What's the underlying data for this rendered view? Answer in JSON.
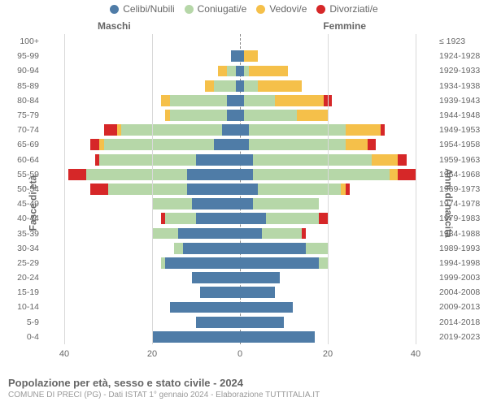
{
  "chart": {
    "type": "population-pyramid-stacked",
    "background_color": "#ffffff",
    "grid_color": "#d9d9d9",
    "center_line_color": "#888888",
    "text_color": "#666666",
    "xmax": 45,
    "x_ticks": [
      40,
      20,
      0,
      20,
      40
    ],
    "categories": [
      {
        "key": "celibi",
        "label": "Celibi/Nubili",
        "color": "#4f7ca7"
      },
      {
        "key": "coniugati",
        "label": "Coniugati/e",
        "color": "#b6d7a8"
      },
      {
        "key": "vedovi",
        "label": "Vedovi/e",
        "color": "#f5c04a"
      },
      {
        "key": "divorziati",
        "label": "Divorziati/e",
        "color": "#d62728"
      }
    ],
    "side_labels": {
      "male": "Maschi",
      "female": "Femmine"
    },
    "y_axis_left_label": "Fasce di età",
    "y_axis_right_label": "Anni di nascita",
    "rows": [
      {
        "age": "100+",
        "birth": "≤ 1923",
        "male": {
          "celibi": 0,
          "coniugati": 0,
          "vedovi": 0,
          "divorziati": 0
        },
        "female": {
          "celibi": 0,
          "coniugati": 0,
          "vedovi": 0,
          "divorziati": 0
        }
      },
      {
        "age": "95-99",
        "birth": "1924-1928",
        "male": {
          "celibi": 2,
          "coniugati": 0,
          "vedovi": 0,
          "divorziati": 0
        },
        "female": {
          "celibi": 1,
          "coniugati": 0,
          "vedovi": 3,
          "divorziati": 0
        }
      },
      {
        "age": "90-94",
        "birth": "1929-1933",
        "male": {
          "celibi": 1,
          "coniugati": 2,
          "vedovi": 2,
          "divorziati": 0
        },
        "female": {
          "celibi": 1,
          "coniugati": 1,
          "vedovi": 9,
          "divorziati": 0
        }
      },
      {
        "age": "85-89",
        "birth": "1934-1938",
        "male": {
          "celibi": 1,
          "coniugati": 5,
          "vedovi": 2,
          "divorziati": 0
        },
        "female": {
          "celibi": 1,
          "coniugati": 3,
          "vedovi": 10,
          "divorziati": 0
        }
      },
      {
        "age": "80-84",
        "birth": "1939-1943",
        "male": {
          "celibi": 3,
          "coniugati": 13,
          "vedovi": 2,
          "divorziati": 0
        },
        "female": {
          "celibi": 1,
          "coniugati": 7,
          "vedovi": 11,
          "divorziati": 2
        }
      },
      {
        "age": "75-79",
        "birth": "1944-1948",
        "male": {
          "celibi": 3,
          "coniugati": 13,
          "vedovi": 1,
          "divorziati": 0
        },
        "female": {
          "celibi": 1,
          "coniugati": 12,
          "vedovi": 7,
          "divorziati": 0
        }
      },
      {
        "age": "70-74",
        "birth": "1949-1953",
        "male": {
          "celibi": 4,
          "coniugati": 23,
          "vedovi": 1,
          "divorziati": 3
        },
        "female": {
          "celibi": 2,
          "coniugati": 22,
          "vedovi": 8,
          "divorziati": 1
        }
      },
      {
        "age": "65-69",
        "birth": "1954-1958",
        "male": {
          "celibi": 6,
          "coniugati": 25,
          "vedovi": 1,
          "divorziati": 2
        },
        "female": {
          "celibi": 2,
          "coniugati": 22,
          "vedovi": 5,
          "divorziati": 2
        }
      },
      {
        "age": "60-64",
        "birth": "1959-1963",
        "male": {
          "celibi": 10,
          "coniugati": 22,
          "vedovi": 0,
          "divorziati": 1
        },
        "female": {
          "celibi": 3,
          "coniugati": 27,
          "vedovi": 6,
          "divorziati": 2
        }
      },
      {
        "age": "55-59",
        "birth": "1964-1968",
        "male": {
          "celibi": 12,
          "coniugati": 23,
          "vedovi": 0,
          "divorziati": 4
        },
        "female": {
          "celibi": 3,
          "coniugati": 31,
          "vedovi": 2,
          "divorziati": 4
        }
      },
      {
        "age": "50-54",
        "birth": "1969-1973",
        "male": {
          "celibi": 12,
          "coniugati": 18,
          "vedovi": 0,
          "divorziati": 4
        },
        "female": {
          "celibi": 4,
          "coniugati": 19,
          "vedovi": 1,
          "divorziati": 1
        }
      },
      {
        "age": "45-49",
        "birth": "1974-1978",
        "male": {
          "celibi": 11,
          "coniugati": 9,
          "vedovi": 0,
          "divorziati": 0
        },
        "female": {
          "celibi": 3,
          "coniugati": 15,
          "vedovi": 0,
          "divorziati": 0
        }
      },
      {
        "age": "40-44",
        "birth": "1979-1983",
        "male": {
          "celibi": 10,
          "coniugati": 7,
          "vedovi": 0,
          "divorziati": 1
        },
        "female": {
          "celibi": 6,
          "coniugati": 12,
          "vedovi": 0,
          "divorziati": 2
        }
      },
      {
        "age": "35-39",
        "birth": "1984-1988",
        "male": {
          "celibi": 14,
          "coniugati": 6,
          "vedovi": 0,
          "divorziati": 0
        },
        "female": {
          "celibi": 5,
          "coniugati": 9,
          "vedovi": 0,
          "divorziati": 1
        }
      },
      {
        "age": "30-34",
        "birth": "1989-1993",
        "male": {
          "celibi": 13,
          "coniugati": 2,
          "vedovi": 0,
          "divorziati": 0
        },
        "female": {
          "celibi": 15,
          "coniugati": 5,
          "vedovi": 0,
          "divorziati": 0
        }
      },
      {
        "age": "25-29",
        "birth": "1994-1998",
        "male": {
          "celibi": 17,
          "coniugati": 1,
          "vedovi": 0,
          "divorziati": 0
        },
        "female": {
          "celibi": 18,
          "coniugati": 2,
          "vedovi": 0,
          "divorziati": 0
        }
      },
      {
        "age": "20-24",
        "birth": "1999-2003",
        "male": {
          "celibi": 11,
          "coniugati": 0,
          "vedovi": 0,
          "divorziati": 0
        },
        "female": {
          "celibi": 9,
          "coniugati": 0,
          "vedovi": 0,
          "divorziati": 0
        }
      },
      {
        "age": "15-19",
        "birth": "2004-2008",
        "male": {
          "celibi": 9,
          "coniugati": 0,
          "vedovi": 0,
          "divorziati": 0
        },
        "female": {
          "celibi": 8,
          "coniugati": 0,
          "vedovi": 0,
          "divorziati": 0
        }
      },
      {
        "age": "10-14",
        "birth": "2009-2013",
        "male": {
          "celibi": 16,
          "coniugati": 0,
          "vedovi": 0,
          "divorziati": 0
        },
        "female": {
          "celibi": 12,
          "coniugati": 0,
          "vedovi": 0,
          "divorziati": 0
        }
      },
      {
        "age": "5-9",
        "birth": "2014-2018",
        "male": {
          "celibi": 10,
          "coniugati": 0,
          "vedovi": 0,
          "divorziati": 0
        },
        "female": {
          "celibi": 10,
          "coniugati": 0,
          "vedovi": 0,
          "divorziati": 0
        }
      },
      {
        "age": "0-4",
        "birth": "2019-2023",
        "male": {
          "celibi": 20,
          "coniugati": 0,
          "vedovi": 0,
          "divorziati": 0
        },
        "female": {
          "celibi": 17,
          "coniugati": 0,
          "vedovi": 0,
          "divorziati": 0
        }
      }
    ]
  },
  "footer": {
    "title": "Popolazione per età, sesso e stato civile - 2024",
    "subtitle": "COMUNE DI PRECI (PG) - Dati ISTAT 1° gennaio 2024 - Elaborazione TUTTITALIA.IT"
  }
}
